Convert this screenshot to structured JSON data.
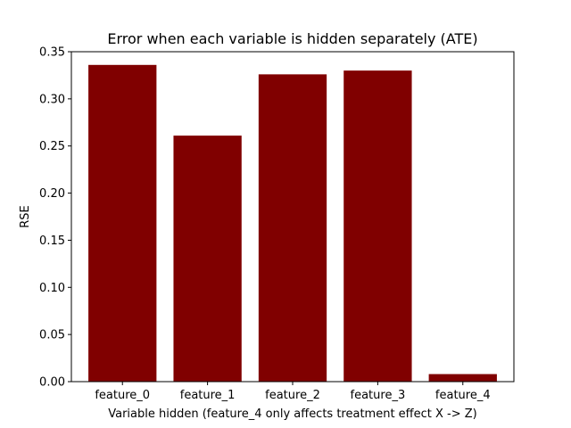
{
  "chart_data": {
    "type": "bar",
    "title": "Error when each variable is hidden separately (ATE)",
    "xlabel": "Variable hidden (feature_4 only affects treatment effect X -> Z)",
    "ylabel": "RSE",
    "categories": [
      "feature_0",
      "feature_1",
      "feature_2",
      "feature_3",
      "feature_4"
    ],
    "values": [
      0.336,
      0.261,
      0.326,
      0.33,
      0.008
    ],
    "ylim": [
      0,
      0.35
    ],
    "yticks": [
      0.0,
      0.05,
      0.1,
      0.15,
      0.2,
      0.25,
      0.3,
      0.35
    ],
    "ytick_labels": [
      "0.00",
      "0.05",
      "0.10",
      "0.15",
      "0.20",
      "0.25",
      "0.30",
      "0.35"
    ],
    "bar_color": "#800000",
    "grid": false,
    "legend": "none"
  }
}
